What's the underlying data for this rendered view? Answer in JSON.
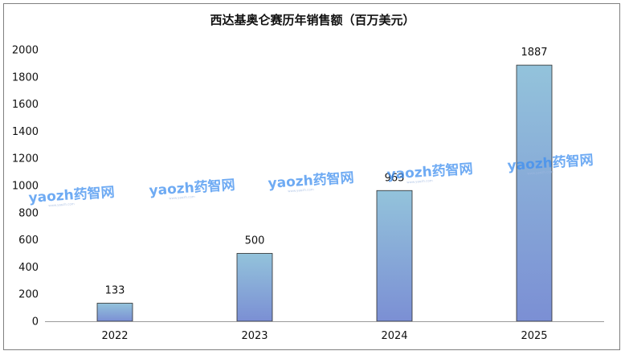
{
  "chart_data": {
    "type": "bar",
    "title": "西达基奥仑赛历年销售额（百万美元）",
    "categories": [
      "2022",
      "2023",
      "2024",
      "2025"
    ],
    "values": [
      133,
      500,
      963,
      1887
    ],
    "data_labels": [
      "133",
      "500",
      "963",
      "1887"
    ],
    "y_ticks": [
      "0",
      "200",
      "400",
      "600",
      "800",
      "1000",
      "1200",
      "1400",
      "1600",
      "1800",
      "2000"
    ],
    "ylim": [
      0,
      2000
    ],
    "grid": false,
    "legend": "none",
    "colors": {
      "bar_top": "#93c3db",
      "bar_bottom": "#7b8fd4",
      "bar_stroke": "#2a2a2a",
      "axis": "#9a9a9a"
    }
  },
  "watermark": {
    "text": "yaozh药智网",
    "sub": "www.yaozh.com"
  }
}
